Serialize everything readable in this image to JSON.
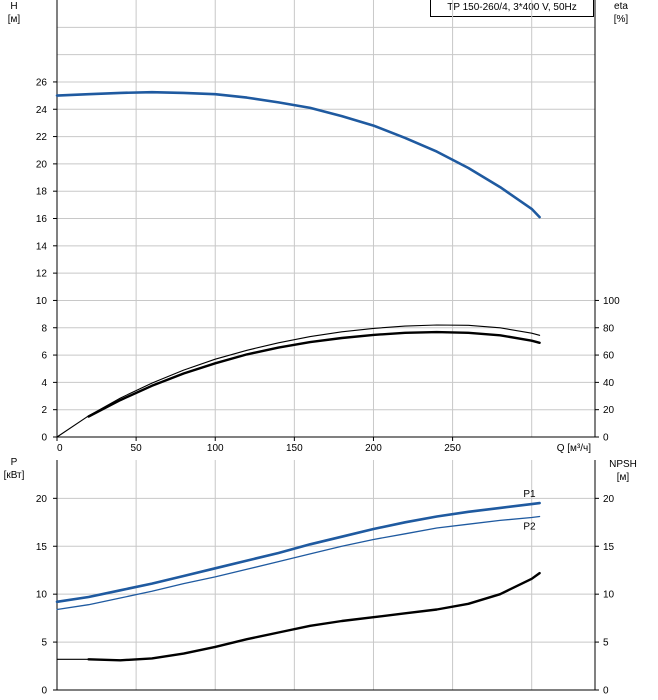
{
  "legend_text": "TP 150-260/4, 3*400 V, 50Hz",
  "colors": {
    "grid": "#c8c8c8",
    "axis": "#000000",
    "blue": "#1f5aa0",
    "black": "#000000",
    "label_blue": "#1f5aa0"
  },
  "chart_data": [
    {
      "type": "line",
      "title": "",
      "xlabel": "Q [м³/ч]",
      "xlim": [
        0,
        340
      ],
      "x_ticks": [
        "0",
        "50",
        "100",
        "150",
        "200",
        "250"
      ],
      "ylabel_left": [
        "H",
        "[м]"
      ],
      "ylim_left": [
        0,
        32
      ],
      "y_ticks_left": [
        "0",
        "2",
        "4",
        "6",
        "8",
        "10",
        "12",
        "14",
        "16",
        "18",
        "20",
        "22",
        "24",
        "26"
      ],
      "ylabel_right": [
        "eta",
        "[%]"
      ],
      "ylim_right": [
        0,
        100
      ],
      "y_ticks_right": [
        "0",
        "20",
        "40",
        "60",
        "80",
        "100"
      ],
      "grid": true,
      "series": [
        {
          "axis": "left",
          "style": "blue-thick",
          "x": [
            0,
            20,
            40,
            60,
            80,
            100,
            120,
            140,
            160,
            180,
            200,
            220,
            240,
            260,
            280,
            300,
            305
          ],
          "y": [
            25.0,
            25.1,
            25.2,
            25.25,
            25.2,
            25.1,
            24.85,
            24.5,
            24.1,
            23.5,
            22.8,
            21.9,
            20.9,
            19.7,
            18.3,
            16.7,
            16.1
          ]
        },
        {
          "axis": "right",
          "style": "black-thin",
          "x": [
            0,
            20,
            40,
            60,
            80,
            100,
            120,
            140,
            160,
            180,
            200,
            220,
            240,
            260,
            280,
            300,
            305
          ],
          "y": [
            0,
            15.5,
            28.5,
            39.5,
            49,
            57,
            63.5,
            69,
            73.5,
            77,
            79.5,
            81.2,
            82,
            81.8,
            80,
            76,
            74.5
          ]
        },
        {
          "axis": "right",
          "style": "black-thick",
          "x": [
            20,
            40,
            60,
            80,
            100,
            120,
            140,
            160,
            180,
            200,
            220,
            240,
            260,
            280,
            300,
            305
          ],
          "y": [
            15,
            27,
            37.5,
            46.5,
            54,
            60.5,
            65.5,
            69.5,
            72.5,
            74.8,
            76.3,
            76.8,
            76.3,
            74.5,
            70.5,
            69
          ]
        }
      ]
    },
    {
      "type": "line",
      "title": "",
      "xlim": [
        0,
        340
      ],
      "ylabel_left": [
        "P",
        "[кВт]"
      ],
      "ylim_left": [
        0,
        24
      ],
      "y_ticks_left": [
        "0",
        "5",
        "10",
        "15",
        "20"
      ],
      "ylabel_right": [
        "NPSH",
        "[м]"
      ],
      "ylim_right": [
        0,
        24
      ],
      "y_ticks_right": [
        "0",
        "5",
        "10",
        "15",
        "20"
      ],
      "grid": true,
      "series": [
        {
          "name": "P1",
          "axis": "left",
          "style": "blue-thick",
          "x": [
            0,
            20,
            40,
            60,
            80,
            100,
            120,
            140,
            160,
            180,
            200,
            220,
            240,
            260,
            280,
            300,
            305
          ],
          "y": [
            9.2,
            9.7,
            10.4,
            11.1,
            11.9,
            12.7,
            13.5,
            14.3,
            15.2,
            16.0,
            16.8,
            17.5,
            18.1,
            18.6,
            19.0,
            19.4,
            19.5
          ]
        },
        {
          "name": "P2",
          "axis": "left",
          "style": "blue-thin",
          "x": [
            0,
            20,
            40,
            60,
            80,
            100,
            120,
            140,
            160,
            180,
            200,
            220,
            240,
            260,
            280,
            300,
            305
          ],
          "y": [
            8.4,
            8.9,
            9.6,
            10.3,
            11.1,
            11.8,
            12.6,
            13.4,
            14.2,
            15.0,
            15.7,
            16.3,
            16.9,
            17.3,
            17.7,
            18.0,
            18.1
          ]
        },
        {
          "axis": "right",
          "style": "black-thin",
          "x": [
            0,
            20
          ],
          "y": [
            3.2,
            3.2
          ]
        },
        {
          "axis": "right",
          "style": "black-thick",
          "x": [
            20,
            40,
            60,
            80,
            100,
            120,
            140,
            160,
            180,
            200,
            220,
            240,
            260,
            280,
            300,
            305
          ],
          "y": [
            3.2,
            3.1,
            3.3,
            3.8,
            4.5,
            5.3,
            6.0,
            6.7,
            7.2,
            7.6,
            8.0,
            8.4,
            9.0,
            10.0,
            11.6,
            12.2
          ]
        }
      ]
    }
  ]
}
